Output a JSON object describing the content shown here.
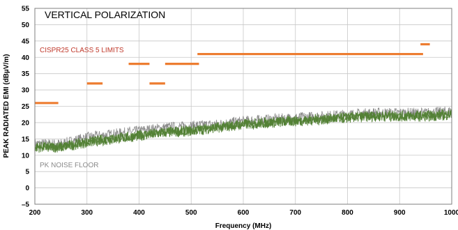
{
  "chart_data": {
    "type": "line",
    "title": "VERTICAL POLARIZATION",
    "xlabel": "Frequency (MHz)",
    "ylabel": "PEAK RADIATED EMI (dBµV/m)",
    "xlim": [
      200,
      1000
    ],
    "ylim": [
      -5,
      55
    ],
    "x_ticks": [
      "200",
      "300",
      "400",
      "500",
      "600",
      "700",
      "800",
      "900",
      "1000"
    ],
    "y_ticks": [
      "–5",
      "0",
      "5",
      "10",
      "15",
      "20",
      "25",
      "30",
      "35",
      "40",
      "45",
      "50",
      "55"
    ],
    "grid": true,
    "annotations": {
      "limits_label": "CISPR25 CLASS 5 LIMITS",
      "floor_label": "PK NOISE FLOOR"
    },
    "colors": {
      "limits": "#ed7d31",
      "limits_text": "#c0392b",
      "emi": "#538135",
      "noise_floor": "#8c8c8c"
    },
    "limit_segments": [
      {
        "x_start": 200,
        "x_end": 245,
        "y": 26
      },
      {
        "x_start": 300,
        "x_end": 330,
        "y": 32
      },
      {
        "x_start": 380,
        "x_end": 420,
        "y": 38
      },
      {
        "x_start": 420,
        "x_end": 450,
        "y": 32
      },
      {
        "x_start": 450,
        "x_end": 515,
        "y": 38
      },
      {
        "x_start": 512,
        "x_end": 945,
        "y": 41
      },
      {
        "x_start": 940,
        "x_end": 958,
        "y": 44
      }
    ],
    "series": [
      {
        "name": "PK NOISE FLOOR",
        "x": [
          200,
          250,
          300,
          350,
          400,
          450,
          500,
          550,
          600,
          650,
          700,
          750,
          800,
          850,
          900,
          950,
          1000
        ],
        "y": [
          13.5,
          13.5,
          15.5,
          16.5,
          17.5,
          18.5,
          19,
          19.5,
          20.5,
          21,
          21.5,
          22,
          22.5,
          23,
          23,
          23,
          23.5
        ]
      },
      {
        "name": "EMI",
        "x": [
          200,
          250,
          300,
          350,
          400,
          450,
          500,
          550,
          600,
          650,
          700,
          750,
          800,
          850,
          900,
          950,
          1000
        ],
        "y": [
          12.5,
          12.5,
          14,
          15,
          16,
          17,
          17.5,
          18.5,
          19.5,
          20,
          20.5,
          21,
          21.5,
          22,
          22,
          22,
          22.5
        ]
      }
    ]
  }
}
